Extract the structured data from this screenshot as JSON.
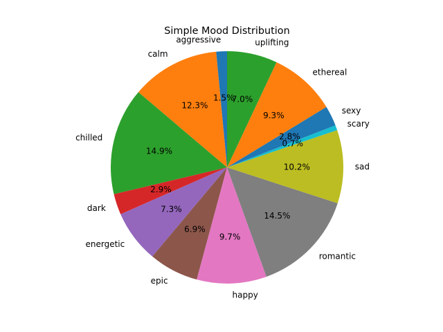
{
  "chart_data": {
    "type": "pie",
    "title": "Simple Mood Distribution",
    "start_angle_deg": 90,
    "direction": "counterclockwise",
    "slices": [
      {
        "label": "aggressive",
        "pct": 1.5,
        "pct_text": "1.5%",
        "color": "#1f77b4"
      },
      {
        "label": "calm",
        "pct": 12.3,
        "pct_text": "12.3%",
        "color": "#ff7f0e"
      },
      {
        "label": "chilled",
        "pct": 14.9,
        "pct_text": "14.9%",
        "color": "#2ca02c"
      },
      {
        "label": "dark",
        "pct": 2.9,
        "pct_text": "2.9%",
        "color": "#d62728"
      },
      {
        "label": "energetic",
        "pct": 7.3,
        "pct_text": "7.3%",
        "color": "#9467bd"
      },
      {
        "label": "epic",
        "pct": 6.9,
        "pct_text": "6.9%",
        "color": "#8c564b"
      },
      {
        "label": "happy",
        "pct": 9.7,
        "pct_text": "9.7%",
        "color": "#e377c2"
      },
      {
        "label": "romantic",
        "pct": 14.5,
        "pct_text": "14.5%",
        "color": "#7f7f7f"
      },
      {
        "label": "sad",
        "pct": 10.2,
        "pct_text": "10.2%",
        "color": "#bcbd22"
      },
      {
        "label": "scary",
        "pct": 0.7,
        "pct_text": "0.7%",
        "color": "#17becf"
      },
      {
        "label": "sexy",
        "pct": 2.8,
        "pct_text": "2.8%",
        "color": "#1f77b4"
      },
      {
        "label": "ethereal",
        "pct": 9.3,
        "pct_text": "9.3%",
        "color": "#ff7f0e"
      },
      {
        "label": "uplifting",
        "pct": 7.0,
        "pct_text": "7.0%",
        "color": "#2ca02c"
      }
    ]
  }
}
